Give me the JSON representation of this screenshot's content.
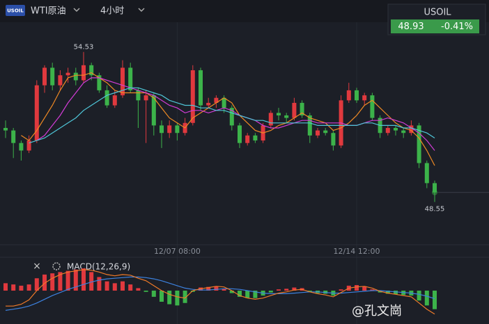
{
  "header": {
    "logo": "USOIL",
    "symbol": "WTI原油",
    "interval": "4小时",
    "ticker": "USOIL",
    "change": "-0.41%"
  },
  "watermark": "@孔文崗",
  "chart_data": {
    "type": "candlestick",
    "up_color": "#e0393e",
    "down_color": "#3cb34a",
    "candles": [
      [
        51.5,
        51.8,
        51.1,
        51.4
      ],
      [
        51.4,
        51.5,
        50.3,
        50.9
      ],
      [
        50.9,
        51.0,
        50.2,
        50.6
      ],
      [
        50.6,
        51.2,
        50.5,
        51.0
      ],
      [
        51.0,
        53.4,
        50.9,
        53.2
      ],
      [
        53.2,
        54.0,
        52.9,
        53.9
      ],
      [
        53.9,
        54.1,
        53.0,
        53.2
      ],
      [
        53.2,
        53.8,
        53.0,
        53.6
      ],
      [
        53.6,
        53.9,
        53.3,
        53.7
      ],
      [
        53.7,
        53.9,
        53.2,
        53.4
      ],
      [
        53.4,
        54.53,
        53.3,
        54.0
      ],
      [
        54.0,
        54.1,
        53.4,
        53.6
      ],
      [
        53.6,
        53.7,
        52.9,
        53.0
      ],
      [
        53.0,
        53.2,
        52.3,
        52.4
      ],
      [
        52.4,
        53.0,
        52.3,
        52.8
      ],
      [
        52.8,
        54.2,
        52.7,
        53.9
      ],
      [
        53.9,
        54.1,
        52.9,
        53.0
      ],
      [
        53.0,
        53.1,
        51.5,
        52.6
      ],
      [
        52.6,
        53.0,
        50.9,
        52.8
      ],
      [
        52.8,
        52.9,
        51.2,
        51.6
      ],
      [
        51.6,
        51.8,
        50.7,
        51.3
      ],
      [
        51.3,
        51.8,
        51.1,
        51.6
      ],
      [
        51.6,
        51.7,
        51.0,
        51.3
      ],
      [
        51.3,
        51.9,
        51.2,
        51.7
      ],
      [
        51.7,
        54.0,
        51.6,
        53.8
      ],
      [
        53.8,
        53.9,
        52.2,
        52.4
      ],
      [
        52.4,
        52.7,
        52.3,
        52.5
      ],
      [
        52.5,
        52.8,
        52.3,
        52.7
      ],
      [
        52.7,
        52.8,
        52.1,
        52.3
      ],
      [
        52.3,
        52.4,
        51.4,
        51.6
      ],
      [
        51.6,
        51.7,
        50.7,
        50.9
      ],
      [
        50.9,
        51.3,
        50.8,
        51.2
      ],
      [
        51.2,
        51.3,
        50.9,
        51.0
      ],
      [
        51.0,
        51.7,
        50.9,
        51.6
      ],
      [
        51.6,
        52.2,
        51.5,
        52.1
      ],
      [
        52.1,
        52.3,
        51.8,
        52.0
      ],
      [
        52.0,
        52.1,
        51.7,
        51.9
      ],
      [
        51.9,
        52.7,
        51.8,
        52.5
      ],
      [
        52.5,
        52.6,
        51.9,
        52.0
      ],
      [
        52.0,
        52.1,
        50.9,
        51.2
      ],
      [
        51.2,
        51.5,
        51.1,
        51.4
      ],
      [
        51.4,
        51.5,
        51.2,
        51.3
      ],
      [
        51.3,
        51.4,
        50.6,
        50.8
      ],
      [
        50.8,
        52.8,
        50.7,
        52.6
      ],
      [
        52.6,
        53.3,
        52.5,
        53.0
      ],
      [
        53.0,
        53.1,
        52.5,
        52.6
      ],
      [
        52.6,
        52.9,
        52.4,
        52.8
      ],
      [
        52.8,
        52.9,
        51.8,
        51.9
      ],
      [
        51.9,
        52.0,
        51.1,
        51.3
      ],
      [
        51.3,
        51.6,
        51.2,
        51.5
      ],
      [
        51.5,
        51.6,
        51.2,
        51.4
      ],
      [
        51.4,
        51.5,
        51.1,
        51.3
      ],
      [
        51.3,
        51.8,
        51.2,
        51.6
      ],
      [
        51.6,
        51.7,
        49.9,
        50.1
      ],
      [
        50.1,
        50.2,
        49.1,
        49.3
      ],
      [
        49.3,
        49.4,
        48.55,
        48.93
      ]
    ],
    "ma_lines": [
      {
        "color": "#f08a24",
        "values": [
          null,
          null,
          51.2,
          51.0,
          51.4,
          51.9,
          52.4,
          53.0,
          53.5,
          53.6,
          53.6,
          53.7,
          53.5,
          53.3,
          53.0,
          52.9,
          52.9,
          52.9,
          52.9,
          52.7,
          52.3,
          51.9,
          51.7,
          51.5,
          51.9,
          52.1,
          52.3,
          52.5,
          52.7,
          52.5,
          52.0,
          51.7,
          51.4,
          51.3,
          51.4,
          51.6,
          51.7,
          51.9,
          52.1,
          51.9,
          51.8,
          51.7,
          51.4,
          51.5,
          51.7,
          52.0,
          52.4,
          52.6,
          52.3,
          52.0,
          51.7,
          51.5,
          51.4,
          51.1,
          50.6,
          50.0
        ]
      },
      {
        "color": "#d23cd6",
        "values": [
          null,
          null,
          null,
          null,
          51.0,
          51.2,
          51.6,
          52.0,
          52.5,
          52.9,
          53.3,
          53.5,
          53.5,
          53.4,
          53.3,
          53.2,
          53.1,
          53.0,
          52.9,
          52.8,
          52.6,
          52.4,
          52.3,
          52.1,
          52.2,
          52.2,
          52.1,
          52.2,
          52.3,
          52.2,
          52.0,
          51.9,
          51.8,
          51.6,
          51.5,
          51.5,
          51.6,
          51.7,
          51.8,
          51.8,
          51.7,
          51.7,
          51.7,
          51.7,
          51.6,
          51.6,
          51.7,
          51.8,
          51.8,
          51.9,
          51.8,
          51.7,
          51.5,
          51.3,
          51.0,
          50.6
        ]
      },
      {
        "color": "#4fc6d8",
        "values": [
          null,
          null,
          null,
          50.9,
          51.0,
          51.1,
          51.3,
          51.5,
          51.7,
          51.9,
          52.2,
          52.4,
          52.6,
          52.8,
          52.9,
          53.0,
          53.1,
          53.1,
          53.0,
          52.9,
          52.8,
          52.6,
          52.5,
          52.4,
          52.4,
          52.3,
          52.3,
          52.2,
          52.2,
          52.1,
          52.0,
          51.9,
          51.8,
          51.8,
          51.7,
          51.7,
          51.7,
          51.7,
          51.7,
          51.7,
          51.6,
          51.6,
          51.6,
          51.6,
          51.6,
          51.6,
          51.7,
          51.7,
          51.6,
          51.6,
          51.6,
          51.5,
          51.5,
          51.4,
          51.3,
          51.1
        ]
      }
    ],
    "ylim": [
      46.9,
      56.6
    ],
    "xlim": [
      0,
      55
    ],
    "xticks": [
      {
        "value": 22,
        "label": "12/07 08:00"
      },
      {
        "value": 45,
        "label": "12/14 12:00"
      }
    ],
    "macd": {
      "label": "MACD(12,26,9)",
      "ylim": [
        -0.45,
        0.45
      ],
      "hist": [
        0.12,
        0.1,
        0.08,
        0.1,
        0.2,
        0.26,
        0.28,
        0.3,
        0.32,
        0.34,
        0.36,
        0.3,
        0.22,
        0.15,
        0.12,
        0.15,
        0.1,
        0.04,
        -0.02,
        -0.1,
        -0.18,
        -0.22,
        -0.24,
        -0.2,
        -0.02,
        0.05,
        0.06,
        0.07,
        0.03,
        -0.04,
        -0.1,
        -0.12,
        -0.12,
        -0.08,
        -0.03,
        0.02,
        0.03,
        0.05,
        0.04,
        -0.02,
        -0.04,
        -0.05,
        -0.08,
        0.02,
        0.08,
        0.09,
        0.07,
        0.02,
        -0.03,
        -0.05,
        -0.06,
        -0.07,
        -0.08,
        -0.16,
        -0.24,
        -0.3
      ],
      "dif": {
        "color": "#f07a28",
        "values": [
          -0.25,
          -0.25,
          -0.22,
          -0.15,
          0.0,
          0.12,
          0.2,
          0.26,
          0.3,
          0.32,
          0.34,
          0.33,
          0.3,
          0.26,
          0.24,
          0.26,
          0.25,
          0.2,
          0.16,
          0.08,
          0.0,
          -0.06,
          -0.1,
          -0.12,
          0.0,
          0.03,
          0.05,
          0.07,
          0.06,
          0.0,
          -0.08,
          -0.12,
          -0.14,
          -0.12,
          -0.08,
          -0.04,
          -0.02,
          0.01,
          0.02,
          -0.02,
          -0.05,
          -0.07,
          -0.1,
          -0.03,
          0.04,
          0.06,
          0.07,
          0.04,
          -0.01,
          -0.04,
          -0.06,
          -0.08,
          -0.1,
          -0.2,
          -0.3,
          -0.38
        ]
      },
      "dea": {
        "color": "#3d82e0",
        "values": [
          -0.32,
          -0.3,
          -0.28,
          -0.25,
          -0.2,
          -0.14,
          -0.08,
          -0.03,
          0.02,
          0.06,
          0.1,
          0.14,
          0.17,
          0.19,
          0.2,
          0.21,
          0.22,
          0.22,
          0.21,
          0.19,
          0.16,
          0.12,
          0.08,
          0.04,
          0.02,
          0.01,
          0.01,
          0.02,
          0.03,
          0.03,
          0.02,
          0.0,
          -0.02,
          -0.04,
          -0.05,
          -0.05,
          -0.05,
          -0.04,
          -0.03,
          -0.02,
          -0.02,
          -0.03,
          -0.04,
          -0.04,
          -0.03,
          -0.02,
          -0.01,
          0.0,
          0.0,
          -0.01,
          -0.02,
          -0.03,
          -0.04,
          -0.06,
          -0.09,
          -0.13
        ]
      }
    }
  }
}
